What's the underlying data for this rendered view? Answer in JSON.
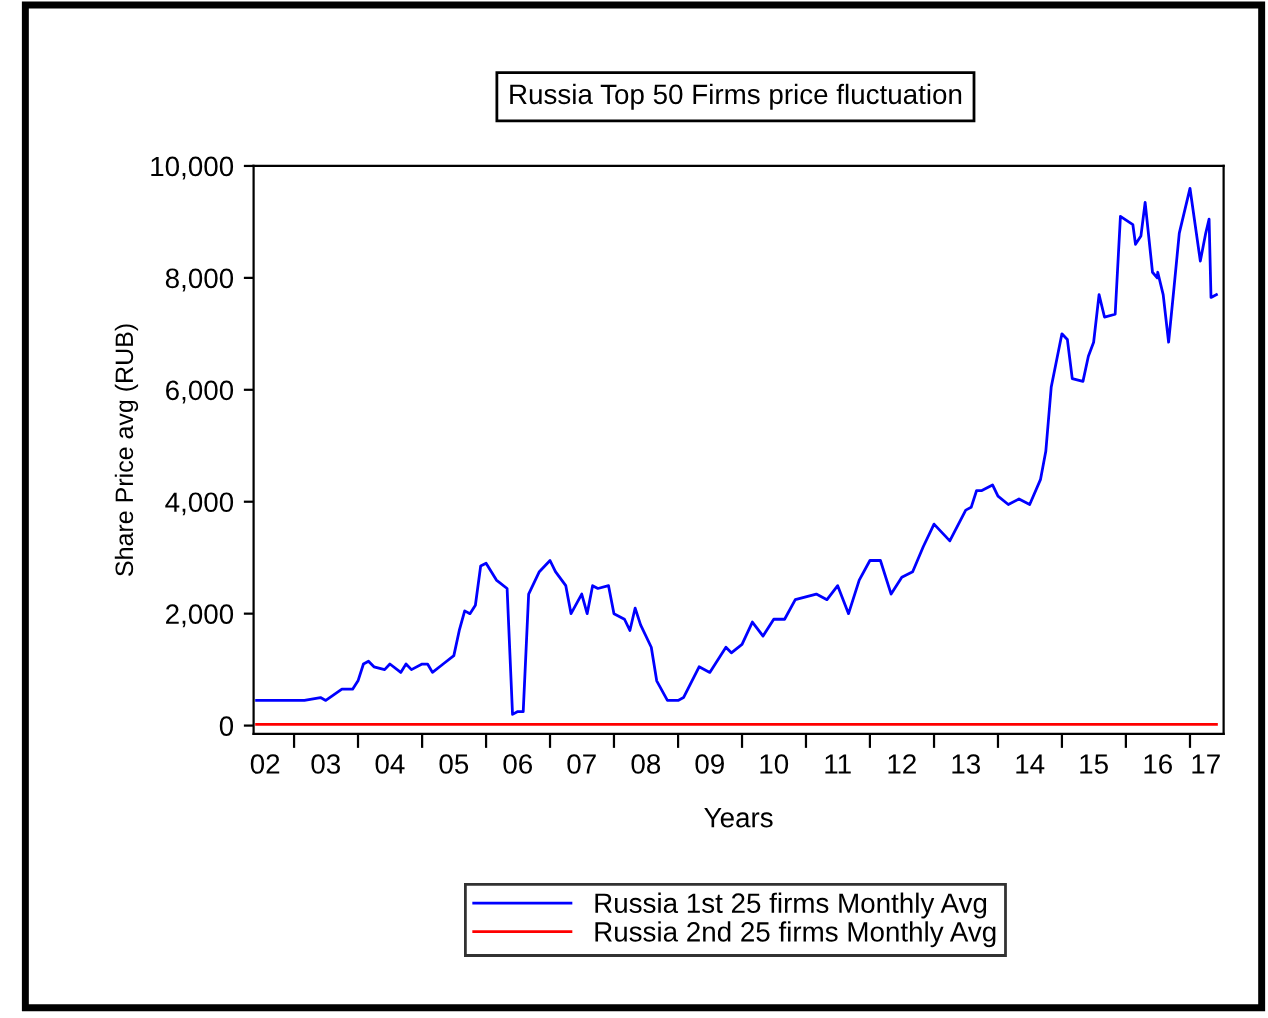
{
  "chart_data": {
    "type": "line",
    "title": "Russia Top 50 Firms price fluctuation",
    "xlabel": "Years",
    "ylabel": "Share Price avg (RUB)",
    "series": [
      {
        "name": "Russia 1st 25 firms Monthly Avg",
        "color": "#0000ff",
        "x": [
          "2002-06",
          "2002-11",
          "2003-03",
          "2003-06",
          "2003-07",
          "2003-10",
          "2003-12",
          "2004-01",
          "2004-02",
          "2004-03",
          "2004-04",
          "2004-06",
          "2004-07",
          "2004-09",
          "2004-10",
          "2004-11",
          "2005-01",
          "2005-02",
          "2005-03",
          "2005-05",
          "2005-07",
          "2005-08",
          "2005-09",
          "2005-10",
          "2005-11",
          "2005-12",
          "2006-01",
          "2006-03",
          "2006-05",
          "2006-06",
          "2006-07",
          "2006-08",
          "2006-09",
          "2006-11",
          "2007-01",
          "2007-02",
          "2007-04",
          "2007-05",
          "2007-07",
          "2007-08",
          "2007-09",
          "2007-10",
          "2007-12",
          "2008-01",
          "2008-03",
          "2008-04",
          "2008-05",
          "2008-06",
          "2008-08",
          "2008-09",
          "2008-11",
          "2009-01",
          "2009-02",
          "2009-05",
          "2009-07",
          "2009-10",
          "2009-11",
          "2010-01",
          "2010-03",
          "2010-05",
          "2010-07",
          "2010-09",
          "2010-11",
          "2011-03",
          "2011-05",
          "2011-07",
          "2011-09",
          "2011-11",
          "2012-01",
          "2012-03",
          "2012-05",
          "2012-07",
          "2012-09",
          "2012-11",
          "2013-01",
          "2013-04",
          "2013-07",
          "2013-08",
          "2013-09",
          "2013-10",
          "2013-12",
          "2014-01",
          "2014-03",
          "2014-05",
          "2014-07",
          "2014-09",
          "2014-10",
          "2014-11",
          "2015-01",
          "2015-02",
          "2015-03",
          "2015-05",
          "2015-06",
          "2015-07",
          "2015-08",
          "2015-09",
          "2015-11",
          "2015-12",
          "2016-02-10",
          "2016-02-25",
          "2016-03-27",
          "2016-04-20",
          "2016-06-01",
          "2016-06-28",
          "2016-07",
          "2016-08",
          "2016-09",
          "2016-10",
          "2016-11",
          "2017-01",
          "2017-03",
          "2017-04-01",
          "2017-04-20",
          "2017-05",
          "2017-06"
        ],
        "values": [
          450,
          450,
          450,
          500,
          450,
          650,
          650,
          800,
          1100,
          1150,
          1050,
          1000,
          1100,
          950,
          1100,
          1000,
          1100,
          1100,
          950,
          1100,
          1250,
          1700,
          2050,
          2000,
          2150,
          2850,
          2900,
          2600,
          2450,
          200,
          250,
          250,
          2350,
          2750,
          2950,
          2750,
          2500,
          2000,
          2350,
          2000,
          2500,
          2450,
          2500,
          2000,
          1900,
          1700,
          2100,
          1800,
          1400,
          800,
          450,
          450,
          500,
          1050,
          950,
          1400,
          1300,
          1450,
          1850,
          1600,
          1900,
          1900,
          2250,
          2350,
          2250,
          2500,
          2000,
          2600,
          2950,
          2950,
          2350,
          2650,
          2750,
          3200,
          3600,
          3300,
          3850,
          3900,
          4200,
          4200,
          4300,
          4100,
          3950,
          4050,
          3950,
          4400,
          4900,
          6050,
          7000,
          6900,
          6200,
          6150,
          6600,
          6850,
          7700,
          7300,
          7350,
          9100,
          8950,
          8600,
          8750,
          9350,
          8100,
          8000,
          8100,
          7700,
          6850,
          7800,
          8800,
          9600,
          8300,
          8800,
          9050,
          7650,
          7700
        ]
      },
      {
        "name": "Russia 2nd 25 firms Monthly Avg",
        "color": "#ff0000",
        "x": [
          "2002-06",
          "2017-06"
        ],
        "values": [
          20,
          20
        ]
      }
    ],
    "xlim": [
      "2002-05-15",
      "2017-07-12"
    ],
    "xticks": [
      {
        "value": "2003",
        "label": null
      },
      {
        "value": "2004",
        "label": null
      },
      {
        "value": "2005",
        "label": null
      },
      {
        "value": "2006",
        "label": null
      },
      {
        "value": "2007",
        "label": null
      },
      {
        "value": "2008",
        "label": null
      },
      {
        "value": "2009",
        "label": null
      },
      {
        "value": "2010",
        "label": null
      },
      {
        "value": "2011",
        "label": null
      },
      {
        "value": "2012",
        "label": null
      },
      {
        "value": "2013",
        "label": null
      },
      {
        "value": "2014",
        "label": null
      },
      {
        "value": "2015",
        "label": null
      },
      {
        "value": "2016",
        "label": null
      },
      {
        "value": "2017",
        "label": null
      },
      {
        "value": "2002-07-20",
        "label": "02"
      },
      {
        "value": "2003-07",
        "label": "03"
      },
      {
        "value": "2004-07",
        "label": "04"
      },
      {
        "value": "2005-07",
        "label": "05"
      },
      {
        "value": "2006-07",
        "label": "06"
      },
      {
        "value": "2007-07",
        "label": "07"
      },
      {
        "value": "2008-07",
        "label": "08"
      },
      {
        "value": "2009-07",
        "label": "09"
      },
      {
        "value": "2010-07",
        "label": "10"
      },
      {
        "value": "2011-07",
        "label": "11"
      },
      {
        "value": "2012-07",
        "label": "12"
      },
      {
        "value": "2013-07",
        "label": "13"
      },
      {
        "value": "2014-07",
        "label": "14"
      },
      {
        "value": "2015-07",
        "label": "15"
      },
      {
        "value": "2016-07",
        "label": "16"
      },
      {
        "value": "2017-04",
        "label": "17"
      }
    ],
    "ylim": [
      -150,
      10000
    ],
    "yticks": [
      {
        "value": 0,
        "label": "0"
      },
      {
        "value": 2000,
        "label": "2,000"
      },
      {
        "value": 4000,
        "label": "4,000"
      },
      {
        "value": 6000,
        "label": "6,000"
      },
      {
        "value": 8000,
        "label": "8,000"
      },
      {
        "value": 10000,
        "label": "10,000"
      }
    ],
    "grid": false,
    "legend": "bottom",
    "line_style": "solid"
  }
}
